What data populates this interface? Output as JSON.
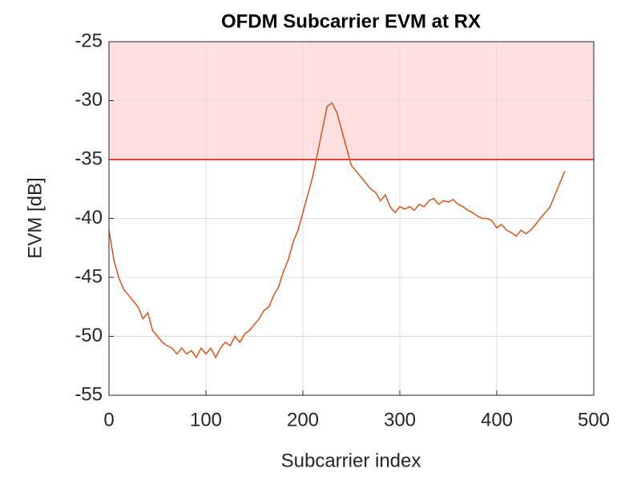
{
  "chart_data": {
    "type": "line",
    "title": "OFDM Subcarrier EVM at RX",
    "xlabel": "Subcarrier index",
    "ylabel": "EVM [dB]",
    "x": [
      0,
      5,
      10,
      15,
      20,
      25,
      30,
      35,
      40,
      45,
      50,
      55,
      60,
      65,
      70,
      75,
      80,
      85,
      90,
      95,
      100,
      105,
      110,
      115,
      120,
      125,
      130,
      135,
      140,
      145,
      150,
      155,
      160,
      165,
      170,
      175,
      180,
      185,
      190,
      195,
      200,
      205,
      210,
      215,
      220,
      225,
      230,
      235,
      240,
      245,
      250,
      255,
      260,
      265,
      270,
      275,
      280,
      285,
      290,
      295,
      300,
      305,
      310,
      315,
      320,
      325,
      330,
      335,
      340,
      345,
      350,
      355,
      360,
      365,
      370,
      375,
      380,
      385,
      390,
      395,
      400,
      405,
      410,
      415,
      420,
      425,
      430,
      435,
      440,
      445,
      450,
      455,
      460,
      465,
      470
    ],
    "series": [
      {
        "name": "EVM",
        "color": "#d95319",
        "values": [
          -41,
          -43.5,
          -45,
          -46,
          -46.5,
          -47,
          -47.5,
          -48.5,
          -48,
          -49.5,
          -50,
          -50.5,
          -50.8,
          -51,
          -51.5,
          -51,
          -51.5,
          -51.2,
          -51.8,
          -51,
          -51.5,
          -51,
          -51.8,
          -51,
          -50.5,
          -50.8,
          -50,
          -50.5,
          -49.8,
          -49.5,
          -49,
          -48.5,
          -47.8,
          -47.5,
          -46.5,
          -45.8,
          -44.5,
          -43.5,
          -42,
          -41,
          -39.5,
          -38,
          -36.5,
          -34.5,
          -32.5,
          -30.5,
          -30.2,
          -31,
          -32.5,
          -34,
          -35.5,
          -36,
          -36.5,
          -37,
          -37.5,
          -37.8,
          -38.5,
          -38,
          -39,
          -39.5,
          -39,
          -39.2,
          -39,
          -39.3,
          -38.8,
          -39,
          -38.5,
          -38.3,
          -38.8,
          -38.5,
          -38.6,
          -38.4,
          -38.8,
          -39,
          -39.3,
          -39.5,
          -39.8,
          -40,
          -40,
          -40.2,
          -40.8,
          -40.5,
          -41,
          -41.2,
          -41.5,
          -41,
          -41.3,
          -41,
          -40.5,
          -40,
          -39.5,
          -39,
          -38,
          -37,
          -36
        ]
      }
    ],
    "threshold": -35,
    "threshold_color": "#e00000",
    "region_color": "#ffe0e0",
    "xlim": [
      0,
      500
    ],
    "xticks": [
      0,
      100,
      200,
      300,
      400,
      500
    ],
    "ylim": [
      -55,
      -25
    ],
    "yticks": [
      -55,
      -50,
      -45,
      -40,
      -35,
      -30,
      -25
    ],
    "grid": true
  }
}
